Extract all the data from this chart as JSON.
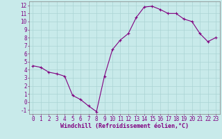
{
  "x": [
    0,
    1,
    2,
    3,
    4,
    5,
    6,
    7,
    8,
    9,
    10,
    11,
    12,
    13,
    14,
    15,
    16,
    17,
    18,
    19,
    20,
    21,
    22,
    23
  ],
  "y": [
    4.5,
    4.3,
    3.7,
    3.5,
    3.2,
    0.8,
    0.3,
    -0.5,
    -1.2,
    3.2,
    6.5,
    7.7,
    8.5,
    10.5,
    11.8,
    11.9,
    11.5,
    11.0,
    11.0,
    10.3,
    10.0,
    8.5,
    7.5,
    8.0
  ],
  "line_color": "#800080",
  "marker": "+",
  "marker_size": 3,
  "xlabel": "Windchill (Refroidissement éolien,°C)",
  "xlabel_fontsize": 6,
  "tick_fontsize": 5.5,
  "xlim": [
    -0.5,
    23.5
  ],
  "ylim": [
    -1.5,
    12.5
  ],
  "yticks": [
    -1,
    0,
    1,
    2,
    3,
    4,
    5,
    6,
    7,
    8,
    9,
    10,
    11,
    12
  ],
  "xticks": [
    0,
    1,
    2,
    3,
    4,
    5,
    6,
    7,
    8,
    9,
    10,
    11,
    12,
    13,
    14,
    15,
    16,
    17,
    18,
    19,
    20,
    21,
    22,
    23
  ],
  "grid_color": "#aad4d4",
  "bg_color": "#c8eaea",
  "spine_color": "#808080",
  "line_width": 0.8,
  "marker_edge_width": 0.8
}
